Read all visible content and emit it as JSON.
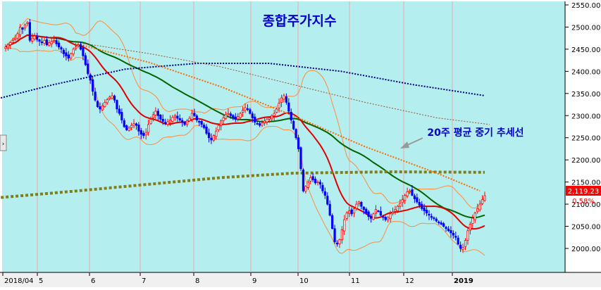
{
  "chart_data": {
    "type": "candlestick",
    "title": "종합주가지수",
    "annotation": "20주 평균 중기 추세선",
    "y_ticks": [
      2000,
      2050,
      2100,
      2150,
      2200,
      2250,
      2300,
      2350,
      2400,
      2450,
      2500,
      2550
    ],
    "ylim": [
      1970,
      2560
    ],
    "x_ticks": [
      "2018/04",
      "5",
      "6",
      "7",
      "8",
      "9",
      "10",
      "11",
      "12",
      "2019"
    ],
    "last_price_label": "2,119.23",
    "last_change_label": "0.58%",
    "close_series": [
      2455,
      2460,
      2465,
      2470,
      2475,
      2485,
      2500,
      2495,
      2505,
      2510,
      2470,
      2475,
      2480,
      2472,
      2468,
      2465,
      2470,
      2460,
      2465,
      2468,
      2470,
      2462,
      2455,
      2450,
      2440,
      2435,
      2430,
      2440,
      2450,
      2455,
      2460,
      2450,
      2435,
      2415,
      2395,
      2380,
      2355,
      2335,
      2320,
      2315,
      2322,
      2330,
      2336,
      2342,
      2345,
      2335,
      2315,
      2305,
      2290,
      2275,
      2268,
      2272,
      2278,
      2282,
      2278,
      2265,
      2258,
      2255,
      2262,
      2280,
      2292,
      2302,
      2310,
      2300,
      2292,
      2287,
      2282,
      2286,
      2290,
      2296,
      2300,
      2294,
      2290,
      2285,
      2280,
      2288,
      2294,
      2305,
      2300,
      2290,
      2285,
      2280,
      2273,
      2260,
      2250,
      2245,
      2255,
      2265,
      2278,
      2288,
      2295,
      2302,
      2305,
      2300,
      2295,
      2292,
      2298,
      2305,
      2312,
      2318,
      2315,
      2305,
      2295,
      2285,
      2282,
      2278,
      2283,
      2288,
      2292,
      2295,
      2300,
      2305,
      2315,
      2328,
      2340,
      2345,
      2330,
      2310,
      2290,
      2270,
      2250,
      2225,
      2180,
      2130,
      2140,
      2150,
      2160,
      2155,
      2148,
      2150,
      2145,
      2130,
      2120,
      2100,
      2075,
      2045,
      2015,
      2010,
      2020,
      2042,
      2065,
      2080,
      2085,
      2078,
      2090,
      2100,
      2105,
      2095,
      2088,
      2080,
      2072,
      2068,
      2078,
      2088,
      2085,
      2075,
      2070,
      2065,
      2070,
      2078,
      2082,
      2088,
      2095,
      2102,
      2110,
      2120,
      2128,
      2130,
      2120,
      2112,
      2105,
      2098,
      2090,
      2085,
      2080,
      2075,
      2070,
      2068,
      2062,
      2058,
      2055,
      2050,
      2045,
      2040,
      2035,
      2030,
      2025,
      2010,
      2000,
      2002,
      2018,
      2040,
      2055,
      2068,
      2080,
      2090,
      2100,
      2110,
      2119
    ]
  }
}
